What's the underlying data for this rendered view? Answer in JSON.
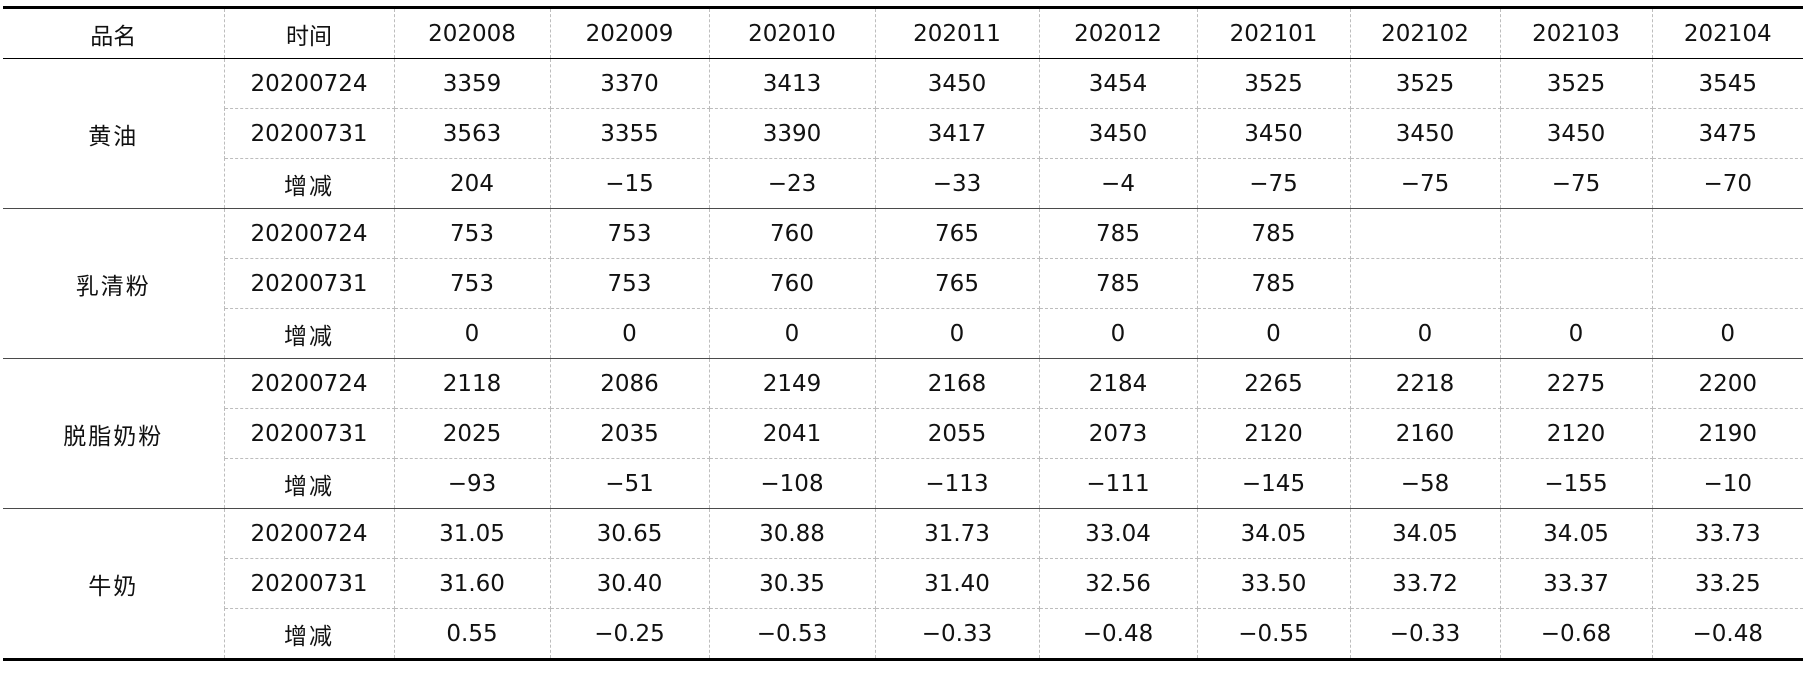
{
  "header": {
    "name": "品名",
    "time": "时间",
    "months": [
      "202008",
      "202009",
      "202010",
      "202011",
      "202012",
      "202101",
      "202102",
      "202103",
      "202104"
    ]
  },
  "groups": [
    {
      "name": "黄油",
      "rows": [
        {
          "label": "20200724",
          "values": [
            "3359",
            "3370",
            "3413",
            "3450",
            "3454",
            "3525",
            "3525",
            "3525",
            "3545"
          ]
        },
        {
          "label": "20200731",
          "values": [
            "3563",
            "3355",
            "3390",
            "3417",
            "3450",
            "3450",
            "3450",
            "3450",
            "3475"
          ]
        },
        {
          "label": "增减",
          "values": [
            "204",
            "−15",
            "−23",
            "−33",
            "−4",
            "−75",
            "−75",
            "−75",
            "−70"
          ]
        }
      ]
    },
    {
      "name": "乳清粉",
      "rows": [
        {
          "label": "20200724",
          "values": [
            "753",
            "753",
            "760",
            "765",
            "785",
            "785",
            "",
            "",
            ""
          ]
        },
        {
          "label": "20200731",
          "values": [
            "753",
            "753",
            "760",
            "765",
            "785",
            "785",
            "",
            "",
            ""
          ]
        },
        {
          "label": "增减",
          "values": [
            "0",
            "0",
            "0",
            "0",
            "0",
            "0",
            "0",
            "0",
            "0"
          ]
        }
      ]
    },
    {
      "name": "脱脂奶粉",
      "rows": [
        {
          "label": "20200724",
          "values": [
            "2118",
            "2086",
            "2149",
            "2168",
            "2184",
            "2265",
            "2218",
            "2275",
            "2200"
          ]
        },
        {
          "label": "20200731",
          "values": [
            "2025",
            "2035",
            "2041",
            "2055",
            "2073",
            "2120",
            "2160",
            "2120",
            "2190"
          ]
        },
        {
          "label": "增减",
          "values": [
            "−93",
            "−51",
            "−108",
            "−113",
            "−111",
            "−145",
            "−58",
            "−155",
            "−10"
          ]
        }
      ]
    },
    {
      "name": "牛奶",
      "rows": [
        {
          "label": "20200724",
          "values": [
            "31.05",
            "30.65",
            "30.88",
            "31.73",
            "33.04",
            "34.05",
            "34.05",
            "34.05",
            "33.73"
          ]
        },
        {
          "label": "20200731",
          "values": [
            "31.60",
            "30.40",
            "30.35",
            "31.40",
            "32.56",
            "33.50",
            "33.72",
            "33.37",
            "33.25"
          ]
        },
        {
          "label": "增减",
          "values": [
            "0.55",
            "−0.25",
            "−0.53",
            "−0.33",
            "−0.48",
            "−0.55",
            "−0.33",
            "−0.68",
            "−0.48"
          ]
        }
      ]
    }
  ]
}
